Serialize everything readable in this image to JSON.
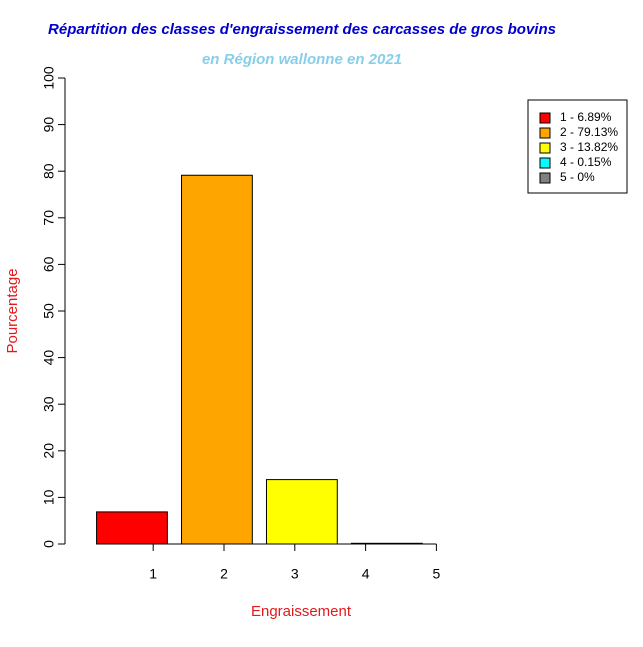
{
  "chart_data": {
    "type": "bar",
    "title": "Répartition des classes d'engraissement des carcasses de gros bovins",
    "subtitle": "en Région wallonne en 2021",
    "x_label": "Engraissement",
    "y_label": "Pourcentage",
    "categories": [
      "1",
      "2",
      "3",
      "4",
      "5"
    ],
    "values": [
      6.89,
      79.13,
      13.82,
      0.15,
      0
    ],
    "colors": [
      "#ff0000",
      "#ffa500",
      "#ffff00",
      "#00ffff",
      "#808080"
    ],
    "legend": [
      "1 - 6.89%",
      "2 - 79.13%",
      "3 - 13.82%",
      "4 - 0.15%",
      "5 - 0%"
    ],
    "legend_position": "top-right",
    "ylim": [
      0,
      100
    ],
    "yticks": [
      0,
      10,
      20,
      30,
      40,
      50,
      60,
      70,
      80,
      90,
      100
    ],
    "grid": false
  }
}
